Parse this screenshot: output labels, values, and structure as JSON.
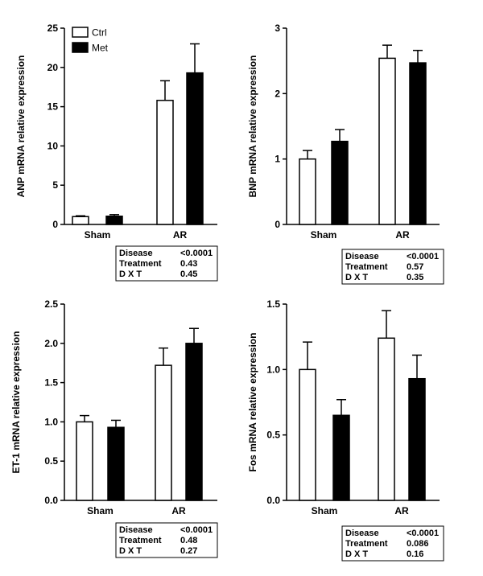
{
  "chart_data": [
    {
      "type": "bar",
      "ylabel": "ANP mRNA relative expression",
      "categories": [
        "Sham",
        "AR"
      ],
      "ylim": [
        0,
        25
      ],
      "yticks": [
        "0",
        "5",
        "10",
        "15",
        "20",
        "25"
      ],
      "legend": {
        "placement": "top-left",
        "entries": [
          "Ctrl",
          "Met"
        ]
      },
      "series": [
        {
          "name": "Ctrl",
          "color": "#ffffff",
          "values": [
            1.0,
            15.8
          ],
          "errors": [
            0.1,
            2.5
          ]
        },
        {
          "name": "Met",
          "color": "#000000",
          "values": [
            1.05,
            19.3
          ],
          "errors": [
            0.2,
            3.7
          ]
        }
      ],
      "stats": [
        {
          "label": "Disease",
          "value": "<0.0001"
        },
        {
          "label": "Treatment",
          "value": "0.43"
        },
        {
          "label": "D X T",
          "value": "0.45"
        }
      ]
    },
    {
      "type": "bar",
      "ylabel": "BNP mRNA relative expression",
      "categories": [
        "Sham",
        "AR"
      ],
      "ylim": [
        0,
        3
      ],
      "yticks": [
        "0",
        "1",
        "2",
        "3"
      ],
      "series": [
        {
          "name": "Ctrl",
          "color": "#ffffff",
          "values": [
            1.0,
            2.54
          ],
          "errors": [
            0.13,
            0.2
          ]
        },
        {
          "name": "Met",
          "color": "#000000",
          "values": [
            1.27,
            2.47
          ],
          "errors": [
            0.18,
            0.19
          ]
        }
      ],
      "stats": [
        {
          "label": "Disease",
          "value": "<0.0001"
        },
        {
          "label": "Treatment",
          "value": "0.57"
        },
        {
          "label": "D X T",
          "value": "0.35"
        }
      ]
    },
    {
      "type": "bar",
      "ylabel": "ET-1 mRNA relative expression",
      "categories": [
        "Sham",
        "AR"
      ],
      "ylim": [
        0,
        2.5
      ],
      "yticks": [
        "0.0",
        "0.5",
        "1.0",
        "1.5",
        "2.0",
        "2.5"
      ],
      "series": [
        {
          "name": "Ctrl",
          "color": "#ffffff",
          "values": [
            1.0,
            1.72
          ],
          "errors": [
            0.08,
            0.22
          ]
        },
        {
          "name": "Met",
          "color": "#000000",
          "values": [
            0.93,
            2.0
          ],
          "errors": [
            0.09,
            0.19
          ]
        }
      ],
      "stats": [
        {
          "label": "Disease",
          "value": "<0.0001"
        },
        {
          "label": "Treatment",
          "value": "0.48"
        },
        {
          "label": "D X T",
          "value": "0.27"
        }
      ]
    },
    {
      "type": "bar",
      "ylabel": "Fos mRNA relative expression",
      "categories": [
        "Sham",
        "AR"
      ],
      "ylim": [
        0,
        1.5
      ],
      "yticks": [
        "0.0",
        "0.5",
        "1.0",
        "1.5"
      ],
      "series": [
        {
          "name": "Ctrl",
          "color": "#ffffff",
          "values": [
            1.0,
            1.24
          ],
          "errors": [
            0.21,
            0.21
          ]
        },
        {
          "name": "Met",
          "color": "#000000",
          "values": [
            0.65,
            0.93
          ],
          "errors": [
            0.12,
            0.18
          ]
        }
      ],
      "stats": [
        {
          "label": "Disease",
          "value": "<0.0001"
        },
        {
          "label": "Treatment",
          "value": "0.086"
        },
        {
          "label": "D X T",
          "value": "0.16"
        }
      ]
    }
  ]
}
